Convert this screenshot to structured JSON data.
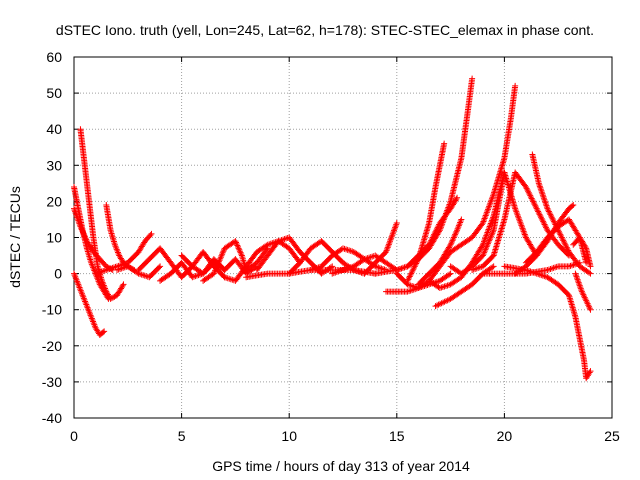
{
  "chart_data": {
    "type": "scatter",
    "title": "dSTEC Iono. truth (yell, Lon=245, Lat=62, h=178): STEC-STEC_elemax in phase cont.",
    "xlabel": "GPS time / hours of day 313 of year 2014",
    "ylabel": "dSTEC  / TECUs",
    "xlim": [
      0,
      25
    ],
    "ylim": [
      -40,
      60
    ],
    "x_ticks": [
      0,
      5,
      10,
      15,
      20,
      25
    ],
    "y_ticks": [
      -40,
      -30,
      -20,
      -10,
      0,
      10,
      20,
      30,
      40,
      50,
      60
    ],
    "x_tick_labels": [
      "0",
      "5",
      "10",
      "15",
      "20",
      "25"
    ],
    "y_tick_labels": [
      "-40",
      "-30",
      "-20",
      "-10",
      "0",
      "10",
      "20",
      "30",
      "40",
      "50",
      "60"
    ],
    "grid": true,
    "marker": "+",
    "color": "#ff0000",
    "series": [
      {
        "x": [
          0.3,
          0.5,
          0.7,
          0.9,
          1.1,
          1.3,
          1.5,
          1.7,
          2.0,
          2.3
        ],
        "y": [
          40,
          30,
          20,
          10,
          2,
          -2,
          -5,
          -7,
          -6,
          -3
        ]
      },
      {
        "x": [
          0.0,
          0.2,
          0.4,
          0.6,
          0.8,
          1.0,
          1.2,
          1.4,
          1.6
        ],
        "y": [
          24,
          18,
          12,
          7,
          3,
          0,
          -3,
          -5,
          -7
        ]
      },
      {
        "x": [
          0.0,
          0.2,
          0.4,
          0.6,
          0.8,
          1.0,
          1.2,
          1.4
        ],
        "y": [
          0,
          -3,
          -6,
          -9,
          -12,
          -15,
          -17,
          -16
        ]
      },
      {
        "x": [
          0.0,
          0.3,
          0.6,
          0.9,
          1.2,
          1.5,
          1.8
        ],
        "y": [
          18,
          13,
          9,
          6,
          4,
          2,
          1
        ]
      },
      {
        "x": [
          1.5,
          1.7,
          1.9,
          2.1,
          2.3,
          2.5,
          2.8
        ],
        "y": [
          19,
          12,
          8,
          5,
          3,
          2,
          1
        ]
      },
      {
        "x": [
          1.0,
          1.5,
          2.0,
          2.5,
          3.0,
          3.3,
          3.6
        ],
        "y": [
          0,
          1,
          2,
          3,
          6,
          9,
          11
        ]
      },
      {
        "x": [
          2.0,
          2.5,
          3.0,
          3.5,
          4.0
        ],
        "y": [
          1,
          2,
          0,
          -1,
          2
        ]
      },
      {
        "x": [
          3.0,
          3.5,
          4.0,
          4.5,
          5.0,
          5.5,
          6.0,
          6.5,
          7.0
        ],
        "y": [
          1,
          4,
          7,
          3,
          -1,
          2,
          6,
          2,
          -1
        ]
      },
      {
        "x": [
          4.0,
          4.5,
          5.0,
          5.5,
          6.0,
          6.5,
          7.0
        ],
        "y": [
          -2,
          0,
          3,
          -1,
          0,
          4,
          1
        ]
      },
      {
        "x": [
          5.0,
          5.5,
          6.0,
          6.5,
          7.0,
          7.5,
          8.0,
          8.5
        ],
        "y": [
          5,
          2,
          0,
          3,
          1,
          4,
          0,
          2
        ]
      },
      {
        "x": [
          6.0,
          6.5,
          7.0,
          7.5,
          7.8,
          8.0,
          8.5,
          9.0
        ],
        "y": [
          -2,
          0,
          7,
          9,
          5,
          1,
          3,
          7
        ]
      },
      {
        "x": [
          7.0,
          7.5,
          8.0,
          8.5,
          9.0,
          9.5,
          10.0,
          10.5
        ],
        "y": [
          -1,
          -2,
          2,
          6,
          8,
          9,
          7,
          3
        ]
      },
      {
        "x": [
          8.5,
          9.0,
          9.5,
          10.0,
          10.5,
          11.0,
          11.5,
          12.0
        ],
        "y": [
          1,
          5,
          9,
          10,
          6,
          3,
          0,
          2
        ]
      },
      {
        "x": [
          10.0,
          10.5,
          11.0,
          11.5,
          12.0,
          12.5,
          13.0,
          13.5
        ],
        "y": [
          0,
          3,
          7,
          9,
          6,
          3,
          1,
          0
        ]
      },
      {
        "x": [
          11.0,
          11.5,
          12.0,
          12.5,
          13.0,
          13.5,
          14.0,
          14.5
        ],
        "y": [
          1,
          2,
          5,
          7,
          6,
          4,
          2,
          1
        ]
      },
      {
        "x": [
          12.0,
          12.5,
          13.0,
          13.5,
          14.0,
          14.5,
          15.0
        ],
        "y": [
          0,
          1,
          2,
          4,
          5,
          3,
          1
        ]
      },
      {
        "x": [
          13.0,
          13.5,
          14.0,
          14.5,
          15.0
        ],
        "y": [
          1,
          0,
          3,
          6,
          14
        ]
      },
      {
        "x": [
          8.0,
          9.0,
          10.0,
          11.0,
          12.0,
          13.0,
          14.0
        ],
        "y": [
          -1,
          0,
          0,
          1,
          1,
          1,
          0
        ]
      },
      {
        "x": [
          14.5,
          15.0,
          15.5,
          16.0,
          16.5,
          17.0,
          17.5
        ],
        "y": [
          -5,
          -5,
          -5,
          -4,
          -3,
          -2,
          0
        ]
      },
      {
        "x": [
          14.0,
          15.0,
          15.5,
          16.0,
          16.5,
          17.0,
          17.5,
          18.0,
          18.3,
          18.5
        ],
        "y": [
          0,
          1,
          2,
          4,
          7,
          12,
          20,
          32,
          45,
          54
        ]
      },
      {
        "x": [
          15.0,
          15.5,
          16.0,
          16.5,
          17.0,
          17.5,
          18.0,
          18.5,
          19.0,
          19.5,
          20.0,
          20.3,
          20.5
        ],
        "y": [
          0,
          -3,
          -4,
          -2,
          2,
          6,
          8,
          10,
          14,
          22,
          32,
          43,
          52
        ]
      },
      {
        "x": [
          15.5,
          16.0,
          16.5,
          16.8,
          17.0,
          17.2
        ],
        "y": [
          -2,
          4,
          14,
          24,
          30,
          36
        ]
      },
      {
        "x": [
          15.0,
          15.5,
          16.0,
          16.5,
          17.0,
          17.5,
          17.8
        ],
        "y": [
          1,
          2,
          5,
          8,
          14,
          18,
          21
        ]
      },
      {
        "x": [
          16.0,
          16.5,
          17.0,
          17.5,
          17.8,
          18.0
        ],
        "y": [
          -3,
          0,
          3,
          8,
          12,
          15
        ]
      },
      {
        "x": [
          16.5,
          17.0,
          17.5,
          18.0,
          18.5,
          19.0,
          19.5,
          20.0
        ],
        "y": [
          -2,
          -4,
          -3,
          -1,
          3,
          8,
          16,
          28
        ]
      },
      {
        "x": [
          16.8,
          17.5,
          18.0,
          18.5,
          19.0,
          19.5
        ],
        "y": [
          -9,
          -7,
          -5,
          -3,
          0,
          2
        ]
      },
      {
        "x": [
          17.5,
          18.0,
          18.5,
          19.0,
          19.5,
          20.0,
          20.5,
          21.0,
          21.5
        ],
        "y": [
          2,
          0,
          2,
          5,
          12,
          28,
          18,
          10,
          5
        ]
      },
      {
        "x": [
          18.5,
          19.0,
          19.5,
          20.0,
          20.5,
          21.0,
          21.5,
          22.0,
          22.5,
          23.0
        ],
        "y": [
          1,
          2,
          5,
          15,
          28,
          24,
          18,
          12,
          8,
          5
        ]
      },
      {
        "x": [
          21.3,
          21.6,
          22.0,
          22.5,
          23.0,
          23.5,
          24.0
        ],
        "y": [
          33,
          25,
          18,
          12,
          6,
          2,
          0
        ]
      },
      {
        "x": [
          20.5,
          21.0,
          21.5,
          22.0,
          22.5,
          23.0,
          23.2
        ],
        "y": [
          0,
          2,
          5,
          9,
          14,
          18,
          19
        ]
      },
      {
        "x": [
          21.0,
          21.5,
          22.0,
          22.5,
          23.0,
          23.5,
          23.8
        ],
        "y": [
          3,
          6,
          10,
          13,
          15,
          10,
          3
        ]
      },
      {
        "x": [
          19.0,
          20.0,
          21.0,
          22.0,
          22.5,
          23.0,
          23.5
        ],
        "y": [
          0,
          0,
          0,
          1,
          2,
          2,
          3
        ]
      },
      {
        "x": [
          20.0,
          21.0,
          21.5,
          22.0,
          22.5,
          23.0,
          23.3,
          23.5,
          23.7,
          23.8,
          24.0
        ],
        "y": [
          2,
          1,
          0,
          -1,
          -3,
          -6,
          -12,
          -18,
          -24,
          -29,
          -27
        ]
      },
      {
        "x": [
          23.2,
          23.5,
          23.8,
          24.0
        ],
        "y": [
          8,
          10,
          7,
          2
        ]
      },
      {
        "x": [
          23.3,
          23.6,
          24.0
        ],
        "y": [
          0,
          -5,
          -10
        ]
      }
    ]
  }
}
